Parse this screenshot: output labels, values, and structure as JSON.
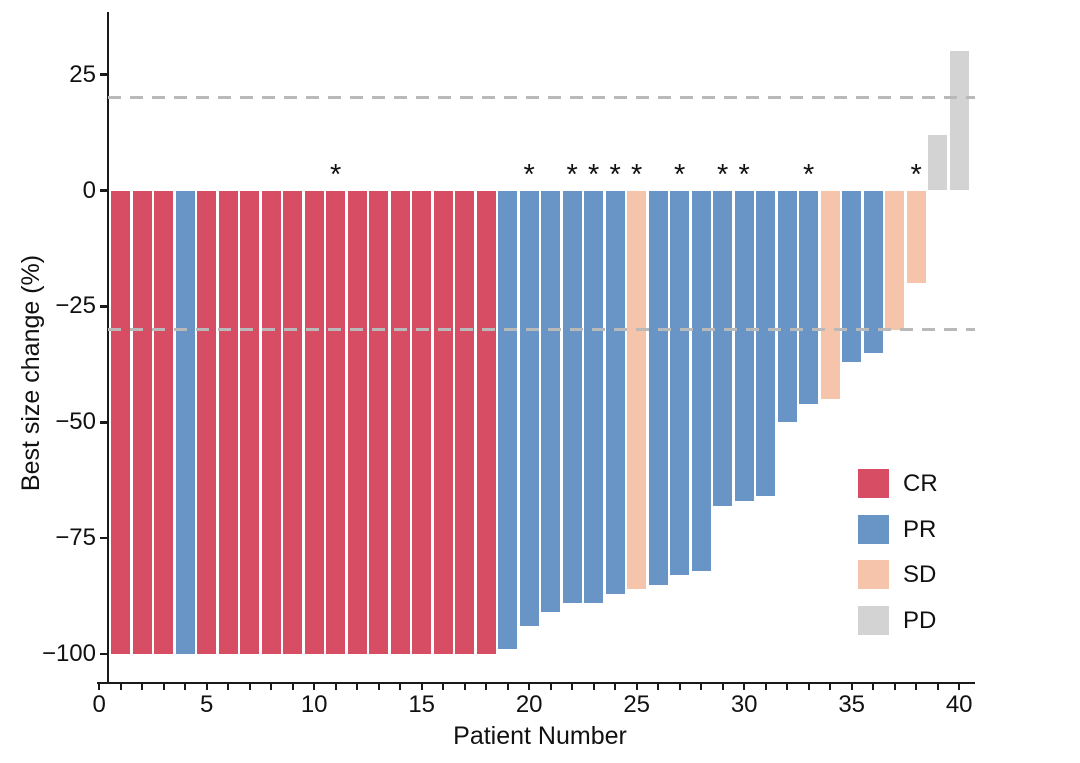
{
  "chart_data": {
    "type": "bar",
    "title": "",
    "xlabel": "Patient Number",
    "ylabel": "Best size change (%)",
    "xlim": [
      0,
      40.6
    ],
    "ylim": [
      -107,
      35
    ],
    "grid": false,
    "x_major_ticks": [
      0,
      5,
      10,
      15,
      20,
      25,
      30,
      35,
      40
    ],
    "x_minor_tick_every": 1,
    "y_ticks": [
      {
        "value": 25,
        "label": "25"
      },
      {
        "value": 0,
        "label": "0"
      },
      {
        "value": -25,
        "label": "−25"
      },
      {
        "value": -50,
        "label": "−50"
      },
      {
        "value": -75,
        "label": "−75"
      },
      {
        "value": -100,
        "label": "−100"
      }
    ],
    "reference_lines": {
      "values": [
        20,
        -30
      ],
      "style": "dashed",
      "color": "#b9b9b9"
    },
    "star_annotation": "*",
    "starred_patients": [
      11,
      20,
      22,
      23,
      24,
      25,
      27,
      29,
      30,
      33,
      38
    ],
    "colors": {
      "CR": "#d64d64",
      "PR": "#6894c6",
      "SD": "#f6c4aa",
      "PD": "#d3d3d3"
    },
    "legend": {
      "position": "inside-right",
      "items": [
        {
          "label": "CR",
          "color": "#d64d64"
        },
        {
          "label": "PR",
          "color": "#6894c6"
        },
        {
          "label": "SD",
          "color": "#f6c4aa"
        },
        {
          "label": "PD",
          "color": "#d3d3d3"
        }
      ]
    },
    "points": [
      {
        "patient": 1,
        "value": -100,
        "response": "CR",
        "star": false
      },
      {
        "patient": 2,
        "value": -100,
        "response": "CR",
        "star": false
      },
      {
        "patient": 3,
        "value": -100,
        "response": "CR",
        "star": false
      },
      {
        "patient": 4,
        "value": -100,
        "response": "PR",
        "star": false
      },
      {
        "patient": 5,
        "value": -100,
        "response": "CR",
        "star": false
      },
      {
        "patient": 6,
        "value": -100,
        "response": "CR",
        "star": false
      },
      {
        "patient": 7,
        "value": -100,
        "response": "CR",
        "star": false
      },
      {
        "patient": 8,
        "value": -100,
        "response": "CR",
        "star": false
      },
      {
        "patient": 9,
        "value": -100,
        "response": "CR",
        "star": false
      },
      {
        "patient": 10,
        "value": -100,
        "response": "CR",
        "star": false
      },
      {
        "patient": 11,
        "value": -100,
        "response": "CR",
        "star": true
      },
      {
        "patient": 12,
        "value": -100,
        "response": "CR",
        "star": false
      },
      {
        "patient": 13,
        "value": -100,
        "response": "CR",
        "star": false
      },
      {
        "patient": 14,
        "value": -100,
        "response": "CR",
        "star": false
      },
      {
        "patient": 15,
        "value": -100,
        "response": "CR",
        "star": false
      },
      {
        "patient": 16,
        "value": -100,
        "response": "CR",
        "star": false
      },
      {
        "patient": 17,
        "value": -100,
        "response": "CR",
        "star": false
      },
      {
        "patient": 18,
        "value": -100,
        "response": "CR",
        "star": false
      },
      {
        "patient": 19,
        "value": -99,
        "response": "PR",
        "star": false
      },
      {
        "patient": 20,
        "value": -94,
        "response": "PR",
        "star": true
      },
      {
        "patient": 21,
        "value": -91,
        "response": "PR",
        "star": false
      },
      {
        "patient": 22,
        "value": -89,
        "response": "PR",
        "star": true
      },
      {
        "patient": 23,
        "value": -89,
        "response": "PR",
        "star": true
      },
      {
        "patient": 24,
        "value": -87,
        "response": "PR",
        "star": true
      },
      {
        "patient": 25,
        "value": -86,
        "response": "SD",
        "star": true
      },
      {
        "patient": 26,
        "value": -85,
        "response": "PR",
        "star": false
      },
      {
        "patient": 27,
        "value": -83,
        "response": "PR",
        "star": true
      },
      {
        "patient": 28,
        "value": -82,
        "response": "PR",
        "star": false
      },
      {
        "patient": 29,
        "value": -68,
        "response": "PR",
        "star": true
      },
      {
        "patient": 30,
        "value": -67,
        "response": "PR",
        "star": true
      },
      {
        "patient": 31,
        "value": -66,
        "response": "PR",
        "star": false
      },
      {
        "patient": 32,
        "value": -50,
        "response": "PR",
        "star": false
      },
      {
        "patient": 33,
        "value": -46,
        "response": "PR",
        "star": true
      },
      {
        "patient": 34,
        "value": -45,
        "response": "SD",
        "star": false
      },
      {
        "patient": 35,
        "value": -37,
        "response": "PR",
        "star": false
      },
      {
        "patient": 36,
        "value": -35,
        "response": "PR",
        "star": false
      },
      {
        "patient": 37,
        "value": -30,
        "response": "SD",
        "star": false
      },
      {
        "patient": 38,
        "value": -20,
        "response": "SD",
        "star": true
      },
      {
        "patient": 39,
        "value": 12,
        "response": "PD",
        "star": false
      },
      {
        "patient": 40,
        "value": 30,
        "response": "PD",
        "star": false
      }
    ]
  }
}
